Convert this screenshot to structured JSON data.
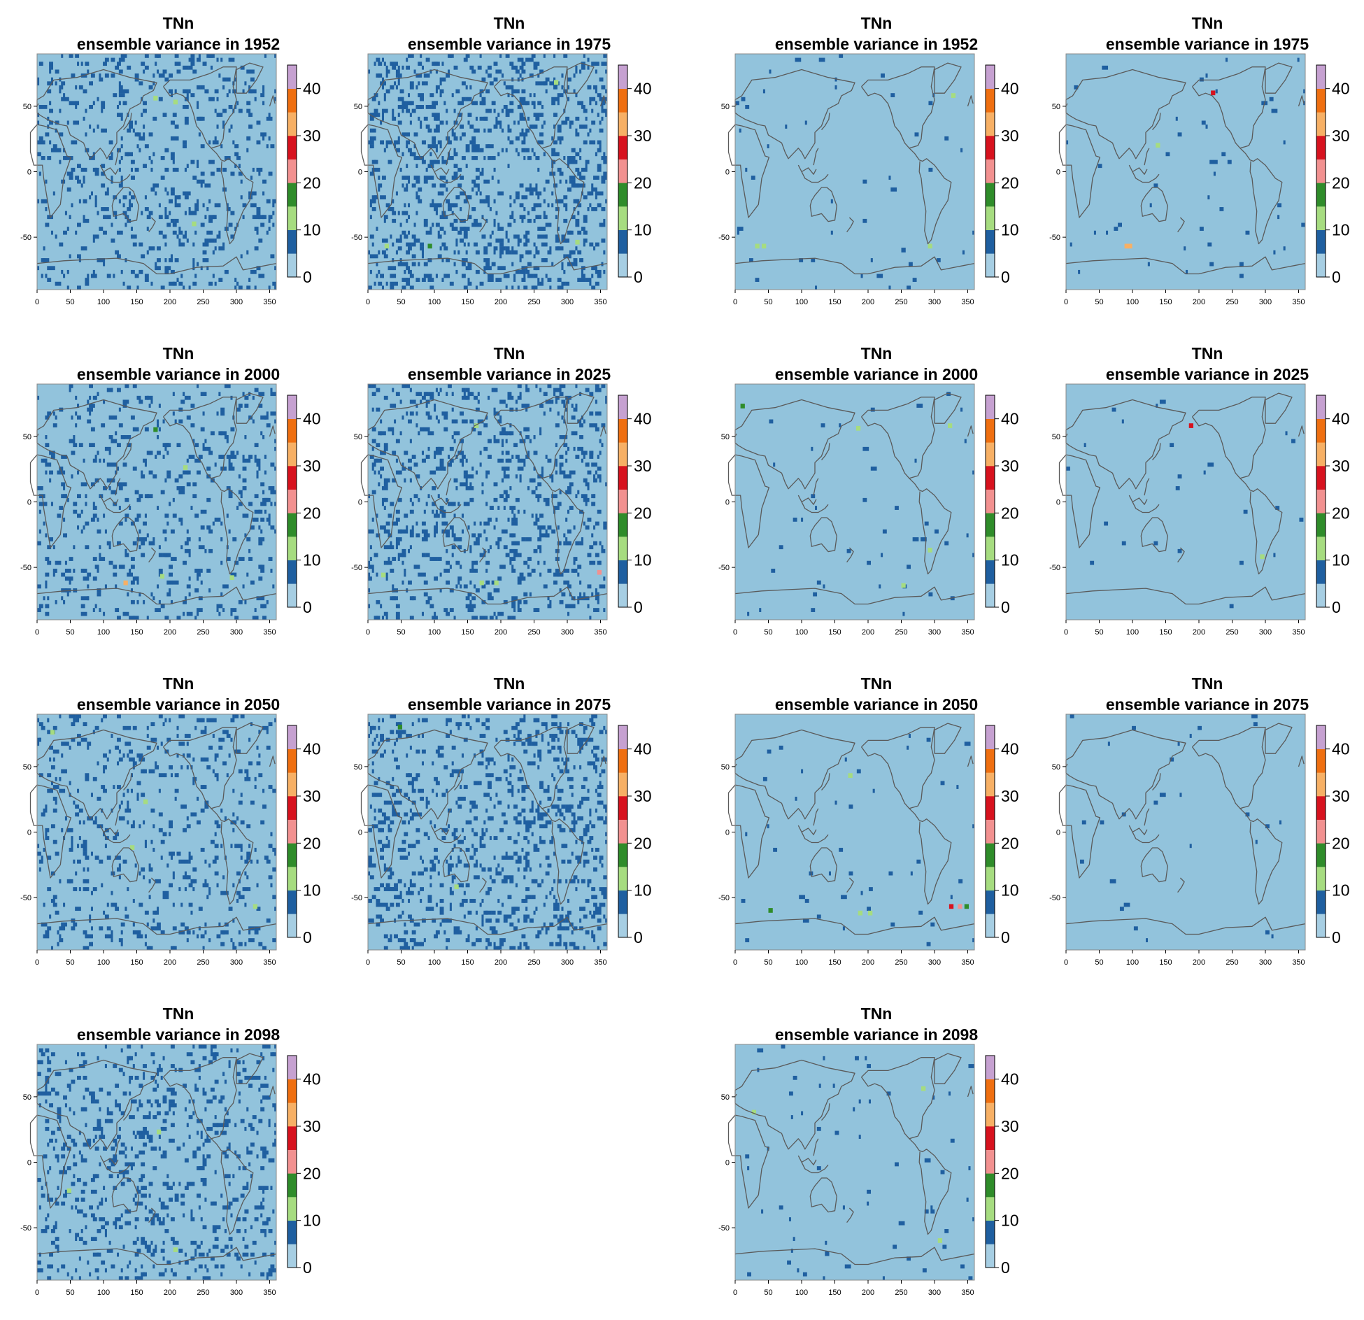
{
  "figure": {
    "background": "#ffffff"
  },
  "colors": {
    "map_background": "#92c3dc",
    "coast": "#5a5a5a",
    "frame": "#888888",
    "legend_bins": [
      "#a6cee3",
      "#1f5fa0",
      "#a6dc80",
      "#2f8c2a",
      "#f29190",
      "#d7121e",
      "#f7b065",
      "#ef6f10",
      "#c6a1d1"
    ]
  },
  "legend": {
    "ticks": [
      "0",
      "10",
      "20",
      "30",
      "40"
    ],
    "vmin": 0,
    "vmax": 45,
    "step": 5
  },
  "axes": {
    "x_ticks": [
      "0",
      "50",
      "100",
      "150",
      "200",
      "250",
      "300",
      "350"
    ],
    "y_ticks": [
      "50",
      "0",
      "-50"
    ],
    "xlim": [
      0,
      360
    ],
    "ylim": [
      -90,
      90
    ]
  },
  "chart_data": [
    {
      "type": "heatmap",
      "title": "TNn",
      "subtitle": "ensemble variance in 1952",
      "density": 0.09,
      "extra": [
        [
          175,
          58,
          2
        ],
        [
          205,
          55,
          2
        ],
        [
          233,
          -38,
          2
        ]
      ]
    },
    {
      "type": "heatmap",
      "title": "TNn",
      "subtitle": "ensemble variance in 1975",
      "density": 0.14,
      "extra": [
        [
          90,
          -55,
          3
        ],
        [
          25,
          -55,
          2
        ],
        [
          280,
          70,
          2
        ],
        [
          312,
          -52,
          2
        ]
      ]
    },
    {
      "type": "heatmap",
      "title": "TNn",
      "subtitle": "ensemble variance in 1952",
      "density": 0.006,
      "extra": [
        [
          30,
          -55,
          2
        ],
        [
          40,
          -55,
          2
        ],
        [
          325,
          60,
          2
        ],
        [
          290,
          -55,
          2
        ],
        [
          250,
          -58,
          1
        ]
      ]
    },
    {
      "type": "heatmap",
      "title": "TNn",
      "subtitle": "ensemble variance in 1975",
      "density": 0.006,
      "extra": [
        [
          88,
          -55,
          6
        ],
        [
          93,
          -55,
          6
        ],
        [
          218,
          62,
          5
        ],
        [
          135,
          22,
          2
        ]
      ]
    },
    {
      "type": "heatmap",
      "title": "TNn",
      "subtitle": "ensemble variance in 2000",
      "density": 0.08,
      "extra": [
        [
          175,
          57,
          3
        ],
        [
          130,
          -60,
          6
        ],
        [
          185,
          -55,
          2
        ],
        [
          290,
          -56,
          2
        ],
        [
          220,
          28,
          2
        ]
      ]
    },
    {
      "type": "heatmap",
      "title": "TNn",
      "subtitle": "ensemble variance in 2025",
      "density": 0.11,
      "extra": [
        [
          168,
          -60,
          2
        ],
        [
          190,
          -60,
          2
        ],
        [
          345,
          -52,
          4
        ],
        [
          20,
          -54,
          2
        ],
        [
          160,
          60,
          2
        ]
      ]
    },
    {
      "type": "heatmap",
      "title": "TNn",
      "subtitle": "ensemble variance in 2000",
      "density": 0.006,
      "extra": [
        [
          8,
          75,
          3
        ],
        [
          182,
          58,
          2
        ],
        [
          290,
          -35,
          2
        ],
        [
          250,
          -62,
          2
        ],
        [
          320,
          60,
          2
        ]
      ]
    },
    {
      "type": "heatmap",
      "title": "TNn",
      "subtitle": "ensemble variance in 2025",
      "density": 0.004,
      "extra": [
        [
          185,
          60,
          5
        ],
        [
          292,
          -40,
          2
        ]
      ]
    },
    {
      "type": "heatmap",
      "title": "TNn",
      "subtitle": "ensemble variance in 2050",
      "density": 0.08,
      "extra": [
        [
          20,
          78,
          2
        ],
        [
          140,
          -10,
          2
        ],
        [
          325,
          -55,
          2
        ],
        [
          160,
          25,
          2
        ]
      ]
    },
    {
      "type": "heatmap",
      "title": "TNn",
      "subtitle": "ensemble variance in 2075",
      "density": 0.12,
      "extra": [
        [
          45,
          82,
          3
        ],
        [
          130,
          -40,
          2
        ]
      ]
    },
    {
      "type": "heatmap",
      "title": "TNn",
      "subtitle": "ensemble variance in 2050",
      "density": 0.006,
      "extra": [
        [
          50,
          -58,
          3
        ],
        [
          185,
          -60,
          2
        ],
        [
          200,
          -60,
          2
        ],
        [
          322,
          -55,
          5
        ],
        [
          335,
          -55,
          4
        ],
        [
          345,
          -55,
          3
        ],
        [
          170,
          45,
          2
        ]
      ]
    },
    {
      "type": "heatmap",
      "title": "TNn",
      "subtitle": "ensemble variance in 2075",
      "density": 0.004,
      "extra": []
    },
    {
      "type": "heatmap",
      "title": "TNn",
      "subtitle": "ensemble variance in 2098",
      "density": 0.09,
      "extra": [
        [
          205,
          -65,
          2
        ],
        [
          45,
          -20,
          2
        ],
        [
          180,
          25,
          2
        ]
      ]
    },
    {
      "type": "heatmap",
      "title": "TNn",
      "subtitle": "ensemble variance in 2098",
      "density": 0.008,
      "extra": [
        [
          280,
          58,
          2
        ],
        [
          25,
          40,
          2
        ],
        [
          305,
          -58,
          2
        ],
        [
          135,
          -68,
          1
        ]
      ]
    }
  ]
}
